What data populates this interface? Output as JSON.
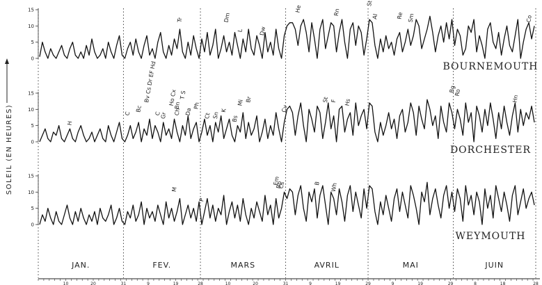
{
  "chart_data": {
    "type": "line",
    "ylabel": "SOLEIL (EN HEURES)",
    "ylim": [
      0,
      15
    ],
    "yticks": [
      "0",
      "5",
      "10",
      "15"
    ],
    "months": [
      {
        "label": "JAN.",
        "days": 31
      },
      {
        "label": "FEV.",
        "days": 28
      },
      {
        "label": "MARS",
        "days": 31
      },
      {
        "label": "AVRIL",
        "days": 30
      },
      {
        "label": "MAI",
        "days": 31
      },
      {
        "label": "JUIN",
        "days": 30
      }
    ],
    "xticks": [
      {
        "day": 10,
        "label": "10"
      },
      {
        "day": 20,
        "label": "20"
      },
      {
        "day": 31,
        "label": "31"
      },
      {
        "day": 40,
        "label": "9"
      },
      {
        "day": 50,
        "label": "19"
      },
      {
        "day": 59,
        "label": "28"
      },
      {
        "day": 69,
        "label": "10"
      },
      {
        "day": 79,
        "label": "20"
      },
      {
        "day": 90,
        "label": "31"
      },
      {
        "day": 99,
        "label": "9"
      },
      {
        "day": 109,
        "label": "19"
      },
      {
        "day": 120,
        "label": "29"
      },
      {
        "day": 129,
        "label": "9"
      },
      {
        "day": 139,
        "label": "19"
      },
      {
        "day": 150,
        "label": "29"
      },
      {
        "day": 159,
        "label": "8"
      },
      {
        "day": 169,
        "label": "18"
      },
      {
        "day": 181,
        "label": "28"
      }
    ],
    "series": [
      {
        "name": "BOURNEMOUTH",
        "values": [
          0.5,
          5,
          2,
          0,
          3,
          1,
          0,
          2,
          4,
          1,
          0,
          3,
          5,
          1,
          0,
          2,
          0,
          4,
          1,
          6,
          2,
          0,
          1,
          3,
          0,
          5,
          2,
          0,
          4,
          7,
          1,
          0,
          3,
          5,
          1,
          6,
          2,
          0,
          4,
          7,
          1,
          3,
          0,
          5,
          8,
          2,
          0,
          4,
          1,
          6,
          3,
          9,
          2,
          0,
          5,
          1,
          7,
          3,
          0,
          6,
          2,
          8,
          1,
          4,
          9,
          0,
          3,
          7,
          2,
          5,
          1,
          8,
          4,
          0,
          6,
          2,
          9,
          3,
          1,
          7,
          4,
          0,
          8,
          2,
          5,
          1,
          9,
          3,
          0,
          7,
          10,
          11,
          11,
          9,
          4,
          10,
          12,
          8,
          2,
          11,
          6,
          0,
          9,
          12,
          3,
          7,
          11,
          10,
          2,
          8,
          12,
          5,
          0,
          9,
          11,
          4,
          10,
          8,
          1,
          6,
          12,
          11,
          4,
          0,
          6,
          2,
          7,
          3,
          5,
          1,
          6,
          8,
          2,
          5,
          9,
          4,
          7,
          12,
          10,
          3,
          6,
          9,
          13,
          8,
          2,
          7,
          10,
          5,
          11,
          6,
          12,
          4,
          9,
          7,
          1,
          3,
          10,
          8,
          12,
          2,
          7,
          4,
          0,
          9,
          11,
          5,
          3,
          8,
          1,
          6,
          10,
          4,
          2,
          7,
          12,
          0,
          5,
          9,
          11,
          6,
          10
        ],
        "labels": [
          {
            "day": 52,
            "text": "Tr",
            "value": 11
          },
          {
            "day": 69,
            "text": "Dm",
            "value": 11
          },
          {
            "day": 74,
            "text": "L",
            "value": 8
          },
          {
            "day": 82,
            "text": "Dw",
            "value": 7
          },
          {
            "day": 95,
            "text": "He",
            "value": 14
          },
          {
            "day": 109,
            "text": "Rn",
            "value": 13
          },
          {
            "day": 121,
            "text": "St",
            "value": 16
          },
          {
            "day": 123,
            "text": "Al",
            "value": 12
          },
          {
            "day": 132,
            "text": "Re",
            "value": 12
          },
          {
            "day": 136,
            "text": "Sm",
            "value": 11
          },
          {
            "day": 179,
            "text": "Co",
            "value": 11
          }
        ]
      },
      {
        "name": "DORCHESTER",
        "values": [
          0,
          2,
          4,
          1,
          0,
          3,
          2,
          5,
          1,
          0,
          2,
          4,
          1,
          0,
          3,
          5,
          2,
          0,
          1,
          3,
          0,
          2,
          4,
          1,
          0,
          5,
          2,
          0,
          3,
          6,
          1,
          0,
          2,
          5,
          1,
          3,
          6,
          0,
          4,
          2,
          7,
          1,
          5,
          3,
          0,
          6,
          2,
          4,
          1,
          7,
          3,
          0,
          5,
          2,
          8,
          1,
          4,
          6,
          0,
          3,
          7,
          2,
          5,
          0,
          6,
          3,
          8,
          1,
          4,
          7,
          2,
          0,
          5,
          3,
          9,
          1,
          6,
          2,
          4,
          8,
          0,
          3,
          7,
          1,
          5,
          2,
          9,
          4,
          0,
          6,
          10,
          11,
          9,
          2,
          8,
          12,
          5,
          0,
          10,
          7,
          3,
          11,
          9,
          1,
          6,
          12,
          4,
          8,
          0,
          10,
          11,
          3,
          7,
          9,
          2,
          12,
          5,
          8,
          10,
          4,
          12,
          11,
          3,
          0,
          6,
          2,
          5,
          9,
          4,
          7,
          1,
          8,
          10,
          3,
          6,
          12,
          9,
          2,
          11,
          7,
          4,
          13,
          10,
          5,
          8,
          1,
          11,
          6,
          3,
          12,
          9,
          4,
          10,
          7,
          2,
          12,
          6,
          9,
          0,
          11,
          8,
          3,
          10,
          5,
          12,
          7,
          1,
          9,
          4,
          11,
          6,
          2,
          8,
          12,
          3,
          10,
          5,
          9,
          7,
          11,
          6
        ],
        "labels": [
          {
            "day": 12,
            "text": "H",
            "value": 5
          },
          {
            "day": 33,
            "text": "C",
            "value": 8
          },
          {
            "day": 37,
            "text": "Bc",
            "value": 9
          },
          {
            "day": 40,
            "text": "Bv Cs Dr EF Hd",
            "value": 12
          },
          {
            "day": 44,
            "text": "C",
            "value": 8
          },
          {
            "day": 46,
            "text": "Gr",
            "value": 7
          },
          {
            "day": 49,
            "text": "Ho Cx",
            "value": 11
          },
          {
            "day": 51,
            "text": "Bn",
            "value": 10
          },
          {
            "day": 53,
            "text": "T S",
            "value": 13
          },
          {
            "day": 51,
            "text": "Ch",
            "value": 8
          },
          {
            "day": 55,
            "text": "Da",
            "value": 8
          },
          {
            "day": 58,
            "text": "Ph",
            "value": 10
          },
          {
            "day": 62,
            "text": "Ct",
            "value": 7
          },
          {
            "day": 65,
            "text": "Sn",
            "value": 7
          },
          {
            "day": 68,
            "text": "K",
            "value": 9
          },
          {
            "day": 72,
            "text": "Bs",
            "value": 6
          },
          {
            "day": 74,
            "text": "Mi",
            "value": 11
          },
          {
            "day": 77,
            "text": "Br",
            "value": 12
          },
          {
            "day": 90,
            "text": "Cv",
            "value": 9
          },
          {
            "day": 105,
            "text": "St",
            "value": 12
          },
          {
            "day": 108,
            "text": "F",
            "value": 12
          },
          {
            "day": 113,
            "text": "Hs",
            "value": 11
          },
          {
            "day": 151,
            "text": "Bg",
            "value": 15
          },
          {
            "day": 153,
            "text": "Ro",
            "value": 14
          },
          {
            "day": 174,
            "text": "Hn",
            "value": 12
          }
        ]
      },
      {
        "name": "WEYMOUTH",
        "values": [
          0,
          3,
          1,
          5,
          2,
          0,
          4,
          1,
          0,
          3,
          6,
          2,
          0,
          4,
          1,
          5,
          2,
          0,
          3,
          1,
          4,
          0,
          5,
          2,
          1,
          3,
          6,
          0,
          2,
          5,
          1,
          0,
          4,
          2,
          6,
          1,
          3,
          7,
          0,
          5,
          2,
          4,
          1,
          6,
          3,
          0,
          7,
          2,
          5,
          1,
          4,
          8,
          0,
          3,
          6,
          2,
          5,
          1,
          7,
          0,
          4,
          8,
          2,
          6,
          1,
          5,
          3,
          9,
          0,
          4,
          7,
          2,
          6,
          1,
          8,
          3,
          0,
          5,
          2,
          7,
          4,
          1,
          9,
          3,
          6,
          0,
          8,
          2,
          5,
          10,
          8,
          11,
          10,
          3,
          9,
          12,
          5,
          1,
          10,
          7,
          11,
          2,
          9,
          12,
          6,
          0,
          10,
          8,
          3,
          11,
          7,
          1,
          9,
          12,
          4,
          10,
          6,
          2,
          11,
          5,
          12,
          11,
          4,
          0,
          7,
          3,
          9,
          5,
          1,
          8,
          11,
          4,
          10,
          6,
          2,
          12,
          9,
          5,
          0,
          10,
          7,
          13,
          3,
          8,
          11,
          6,
          2,
          9,
          12,
          5,
          10,
          4,
          11,
          8,
          1,
          12,
          6,
          9,
          3,
          10,
          7,
          0,
          11,
          5,
          9,
          2,
          12,
          8,
          4,
          10,
          6,
          1,
          9,
          12,
          3,
          7,
          11,
          5,
          8,
          10,
          6
        ],
        "labels": [
          {
            "day": 50,
            "text": "M",
            "value": 10
          },
          {
            "day": 60,
            "text": "P",
            "value": 7
          },
          {
            "day": 87,
            "text": "Em",
            "value": 12
          },
          {
            "day": 88,
            "text": "Bp",
            "value": 11
          },
          {
            "day": 89,
            "text": "Cs",
            "value": 11
          },
          {
            "day": 102,
            "text": "B",
            "value": 12
          },
          {
            "day": 108,
            "text": "Wh",
            "value": 10
          }
        ]
      }
    ]
  }
}
